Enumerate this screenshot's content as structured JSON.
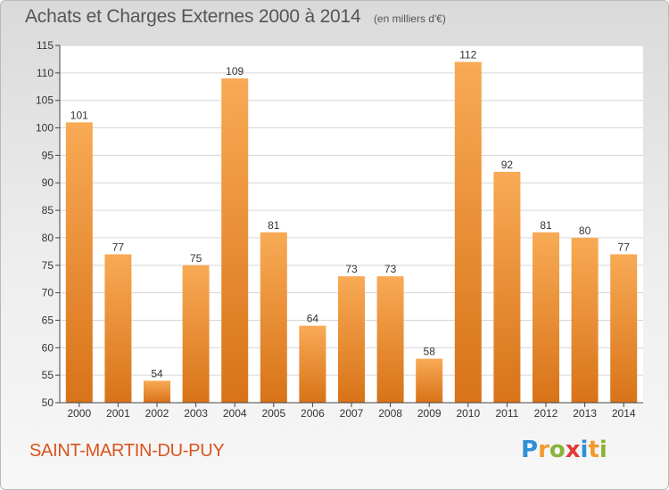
{
  "title": "Achats et Charges Externes 2000 à 2014",
  "unit": "(en milliers d'€)",
  "place": "SAINT-MARTIN-DU-PUY",
  "brand": {
    "letters": [
      "P",
      "r",
      "o",
      "x",
      "i",
      "t",
      "i"
    ],
    "colors": [
      "#2f8fd8",
      "#f29a2e",
      "#8ab33a",
      "#e03a3a",
      "#2f8fd8",
      "#f29a2e",
      "#8ab33a"
    ]
  },
  "colors": {
    "bar_light": "#f8aa55",
    "bar_dark": "#d87318",
    "axis": "#444444",
    "grid": "#d6d6d6"
  },
  "chart_data": {
    "type": "bar",
    "categories": [
      "2000",
      "2001",
      "2002",
      "2003",
      "2004",
      "2005",
      "2006",
      "2007",
      "2008",
      "2009",
      "2010",
      "2011",
      "2012",
      "2013",
      "2014"
    ],
    "values": [
      101,
      77,
      54,
      75,
      109,
      81,
      64,
      73,
      73,
      58,
      112,
      92,
      81,
      80,
      77
    ],
    "ylim": [
      50,
      115
    ],
    "yticks": [
      50,
      55,
      60,
      65,
      70,
      75,
      80,
      85,
      90,
      95,
      100,
      105,
      110,
      115
    ],
    "grid": true,
    "data_labels": true
  }
}
